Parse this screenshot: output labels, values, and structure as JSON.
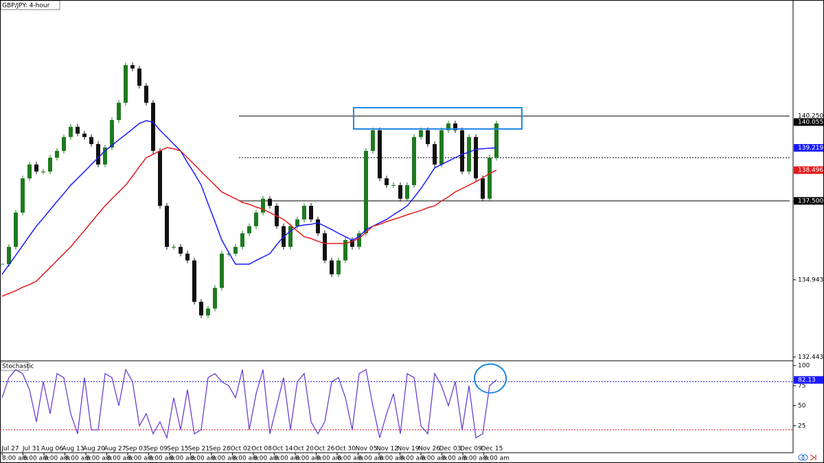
{
  "chart_data": [
    {
      "type": "candlestick",
      "title": "GBP/JPY: 4-hour",
      "close": [
        135.45,
        136.01,
        137.12,
        138.23,
        138.68,
        138.45,
        138.45,
        138.9,
        139.12,
        139.57,
        139.9,
        139.68,
        139.57,
        139.34,
        138.68,
        139.23,
        140.12,
        140.68,
        141.9,
        141.79,
        141.23,
        140.68,
        139.12,
        137.34,
        136.01,
        136.01,
        135.79,
        135.57,
        134.23,
        133.79,
        134.01,
        134.68,
        135.79,
        135.79,
        136.01,
        136.45,
        136.68,
        137.12,
        137.57,
        137.34,
        136.68,
        136.01,
        136.68,
        136.9,
        137.34,
        136.9,
        136.45,
        135.57,
        135.12,
        135.57,
        136.23,
        136.01,
        136.45,
        139.12,
        139.79,
        138.23,
        138.01,
        138.01,
        137.57,
        138.01,
        139.57,
        139.79,
        139.34,
        138.68,
        139.79,
        140.01,
        139.79,
        138.45,
        139.57,
        138.23,
        137.57,
        138.9,
        140.01
      ],
      "up_color": "#1f7a1f",
      "down_color": "#111111",
      "series": [
        {
          "color": "#1a1aff",
          "values": [
            135.12,
            135.43,
            135.74,
            136.05,
            136.37,
            136.68,
            136.94,
            137.21,
            137.48,
            137.74,
            138.01,
            138.23,
            138.45,
            138.68,
            138.9,
            139.12,
            139.3,
            139.48,
            139.65,
            139.83,
            140.01,
            140.1,
            140.05,
            139.79,
            139.57,
            139.34,
            139.12,
            138.74,
            138.39,
            138.01,
            137.41,
            136.83,
            136.23,
            135.83,
            135.45,
            135.45,
            135.45,
            135.57,
            135.68,
            135.79,
            136.08,
            136.34,
            136.52,
            136.68,
            136.72,
            136.74,
            136.79,
            136.68,
            136.57,
            136.45,
            136.34,
            136.23,
            136.34,
            136.57,
            136.68,
            136.79,
            136.9,
            137.05,
            137.19,
            137.34,
            137.61,
            137.9,
            138.23,
            138.57,
            138.68,
            138.79,
            138.9,
            139.01,
            139.08,
            139.17,
            139.19,
            139.21,
            139.219
          ]
        },
        {
          "color": "#e31a1c",
          "values": [
            134.41,
            134.5,
            134.59,
            134.7,
            134.79,
            134.9,
            135.12,
            135.34,
            135.57,
            135.79,
            136.01,
            136.28,
            136.54,
            136.81,
            137.08,
            137.34,
            137.57,
            137.79,
            138.01,
            138.3,
            138.61,
            138.9,
            139.01,
            139.12,
            139.23,
            139.19,
            139.12,
            138.9,
            138.68,
            138.45,
            138.23,
            138.01,
            137.79,
            137.68,
            137.57,
            137.45,
            137.39,
            137.3,
            137.23,
            137.12,
            137.01,
            136.9,
            136.72,
            136.52,
            136.34,
            136.28,
            136.19,
            136.12,
            136.12,
            136.12,
            136.12,
            136.19,
            136.28,
            136.48,
            136.68,
            136.74,
            136.83,
            136.9,
            136.97,
            137.05,
            137.12,
            137.19,
            137.28,
            137.34,
            137.5,
            137.63,
            137.79,
            137.9,
            138.01,
            138.12,
            138.25,
            138.39,
            138.496
          ]
        }
      ],
      "ylim": [
        132.34,
        144.01
      ],
      "yticks": [
        {
          "value": 132.443,
          "label": "132.443"
        },
        134.943,
        {
          "value": 137.5,
          "label": "137.500"
        }
      ],
      "levels": [
        {
          "value": 140.25,
          "style": "solid",
          "start": 34.5
        },
        {
          "value": 138.9,
          "style": "dotted",
          "start": 34.5
        },
        {
          "value": 137.5,
          "style": "solid",
          "start": 34.5
        }
      ],
      "price_labels": [
        {
          "value": 140.25,
          "label": "140.250",
          "color": "#ffffff"
        },
        {
          "value": 140.055,
          "label": "140.055",
          "color": "#000000"
        },
        {
          "value": 139.219,
          "label": "139.219",
          "color": "#1a1aff"
        },
        {
          "value": 138.496,
          "label": "138.496",
          "color": "#e31a1c"
        },
        {
          "value": 137.5,
          "label": "137.500",
          "color": "#000000"
        }
      ],
      "box": {
        "x": [
          51.2,
          75.7
        ],
        "y": [
          139.83,
          140.52
        ],
        "color": "#1e88e5"
      }
    },
    {
      "type": "line",
      "title": "Stochastic",
      "values": [
        60,
        85,
        95,
        90,
        70,
        30,
        80,
        40,
        90,
        85,
        40,
        15,
        85,
        20,
        20,
        90,
        85,
        50,
        95,
        80,
        25,
        40,
        15,
        30,
        10,
        60,
        20,
        70,
        15,
        20,
        85,
        90,
        80,
        75,
        60,
        95,
        20,
        65,
        95,
        15,
        50,
        85,
        20,
        80,
        90,
        30,
        15,
        30,
        80,
        85,
        60,
        20,
        90,
        95,
        50,
        10,
        40,
        65,
        15,
        90,
        85,
        25,
        15,
        90,
        75,
        50,
        80,
        20,
        75,
        10,
        15,
        75,
        82.13
      ],
      "color": "#6a3fd0",
      "ylim": [
        0,
        100
      ],
      "yticks": [
        25,
        50,
        75,
        100
      ],
      "levels": [
        {
          "value": 80,
          "color": "#1a1aff"
        },
        {
          "value": 20,
          "color": "#e31a1c"
        }
      ],
      "current": 82.13,
      "highlight": {
        "x": 71.1,
        "y": 84,
        "color": "#1e88e5"
      }
    }
  ],
  "x_axis": {
    "dates": [
      "Jul 27",
      "Jul 31",
      "Aug 06",
      "Aug 13",
      "Aug 20",
      "Aug 27",
      "Sep 03",
      "Sep 09",
      "Sep 15",
      "Sep 21",
      "Sep 28",
      "Oct 02",
      "Oct 08",
      "Oct 14",
      "Oct 20",
      "Oct 26",
      "Oct 30",
      "Nov 05",
      "Nov 12",
      "Nov 19",
      "Nov 26",
      "Dec 03",
      "Dec 09",
      "Dec 15"
    ],
    "times": [
      "8:00 am",
      "8:00 am",
      "8:00 am",
      "8:00 am",
      "8:00 am",
      "8:00 am",
      "8:00 am",
      "8:00 am",
      "8:00 am",
      "8:00 am",
      "8:00 am",
      "8:00 am",
      "8:00 am",
      "8:00 am",
      "8:00 am",
      "8:00 am",
      "8:00 am",
      "8:00 am",
      "8:00 am",
      "8:00 am",
      "8:00 am",
      "8:00 am",
      "8:00 am",
      "8:00 am"
    ]
  }
}
